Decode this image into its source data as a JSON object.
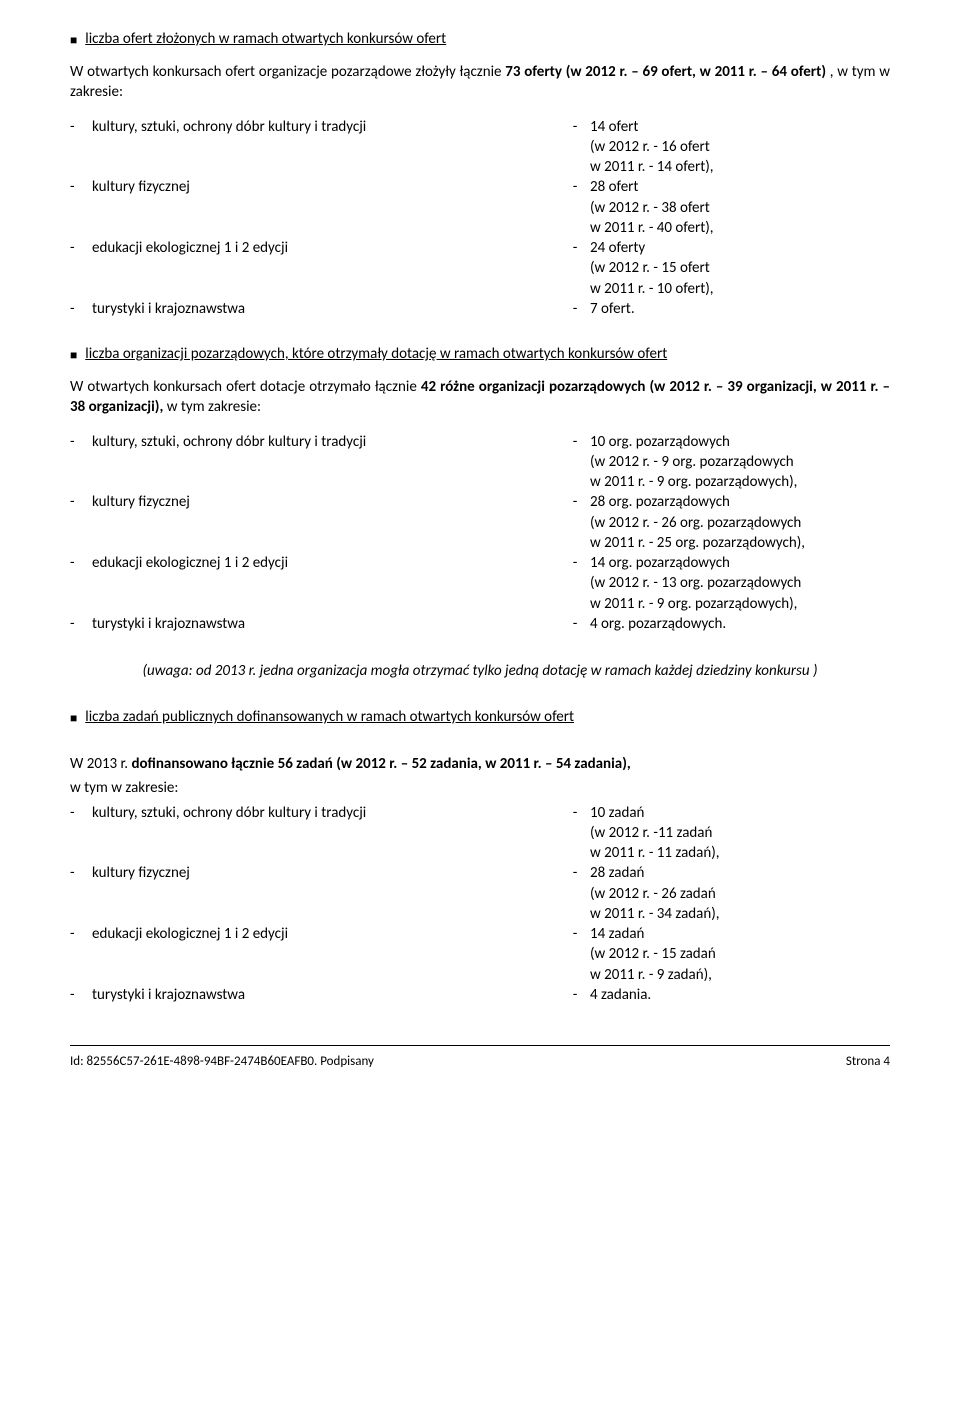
{
  "section1": {
    "title": "liczba ofert złożonych w ramach otwartych konkursów ofert",
    "intro_pre": "W otwartych konkursach ofert organizacje pozarządowe złożyły łącznie ",
    "intro_bold1": "73 oferty (w 2012 r. – 69 ofert, w 2011 r. – 64 ofert)",
    "intro_post": " , w tym w zakresie:",
    "items": [
      {
        "label": "kultury, sztuki, ochrony dóbr kultury i tradycji",
        "val": "14 ofert",
        "sub1": "(w 2012 r. - 16 ofert",
        "sub2": "w 2011 r. - 14 ofert),"
      },
      {
        "label": "kultury fizycznej",
        "val": "28 ofert",
        "sub1": "(w 2012 r. - 38 ofert",
        "sub2": "w 2011 r. - 40 ofert),"
      },
      {
        "label": "edukacji ekologicznej 1 i 2 edycji",
        "val": "24 oferty",
        "sub1": "(w 2012 r. - 15 ofert",
        "sub2": "w 2011 r. - 10 ofert),"
      },
      {
        "label": "turystyki i krajoznawstwa",
        "val": "7 ofert.",
        "sub1": "",
        "sub2": ""
      }
    ]
  },
  "section2": {
    "title": "liczba organizacji pozarządowych, które otrzymały dotację w ramach otwartych konkursów ofert",
    "intro_pre": "W otwartych konkursach ofert dotacje otrzymało łącznie ",
    "intro_bold1": "42 różne organizacji pozarządowych (w 2012 r. – 39 organizacji, w 2011 r. – 38 organizacji),",
    "intro_post": " w tym zakresie:",
    "items": [
      {
        "label": "kultury, sztuki, ochrony dóbr kultury i tradycji",
        "val": "10 org. pozarządowych",
        "sub1": "(w 2012 r. - 9 org. pozarządowych",
        "sub2": "w 2011 r. - 9 org. pozarządowych),"
      },
      {
        "label": "kultury fizycznej",
        "val": "28 org. pozarządowych",
        "sub1": "(w 2012 r. - 26 org. pozarządowych",
        "sub2": "w 2011 r. - 25 org. pozarządowych),"
      },
      {
        "label": "edukacji ekologicznej 1 i 2 edycji",
        "val": "14 org. pozarządowych",
        "sub1": "(w 2012 r. - 13 org. pozarządowych",
        "sub2": "w 2011 r. - 9 org. pozarządowych),"
      },
      {
        "label": "turystyki i krajoznawstwa",
        "val": "4 org. pozarządowych.",
        "sub1": "",
        "sub2": ""
      }
    ]
  },
  "note": "(uwaga: od 2013 r. jedna organizacja mogła otrzymać tylko jedną dotację w ramach każdej dziedziny konkursu )",
  "section3": {
    "title": "liczba zadań publicznych dofinansowanych w ramach otwartych konkursów ofert",
    "intro_pre": "W 2013 r. ",
    "intro_bold1": "dofinansowano łącznie 56 zadań (w 2012 r. – 52 zadania, w 2011 r. – 54 zadania),",
    "intro_post2": "w tym w zakresie:",
    "items": [
      {
        "label": "kultury, sztuki, ochrony dóbr kultury i tradycji",
        "val": "10 zadań",
        "sub1": "(w 2012 r. -11 zadań",
        "sub2": "w 2011 r. - 11 zadań),"
      },
      {
        "label": "kultury fizycznej",
        "val": "28 zadań",
        "sub1": "(w 2012 r. - 26 zadań",
        "sub2": " w 2011 r. - 34 zadań),"
      },
      {
        "label": "edukacji ekologicznej 1 i 2 edycji",
        "val": "14 zadań",
        "sub1": "(w 2012 r. - 15 zadań",
        "sub2": " w 2011 r. - 9 zadań),"
      },
      {
        "label": "turystyki i krajoznawstwa",
        "val": "4 zadania.",
        "sub1": "",
        "sub2": ""
      }
    ]
  },
  "footer": {
    "left": "Id: 82556C57-261E-4898-94BF-2474B60EAFB0. Podpisany",
    "right": "Strona 4"
  }
}
